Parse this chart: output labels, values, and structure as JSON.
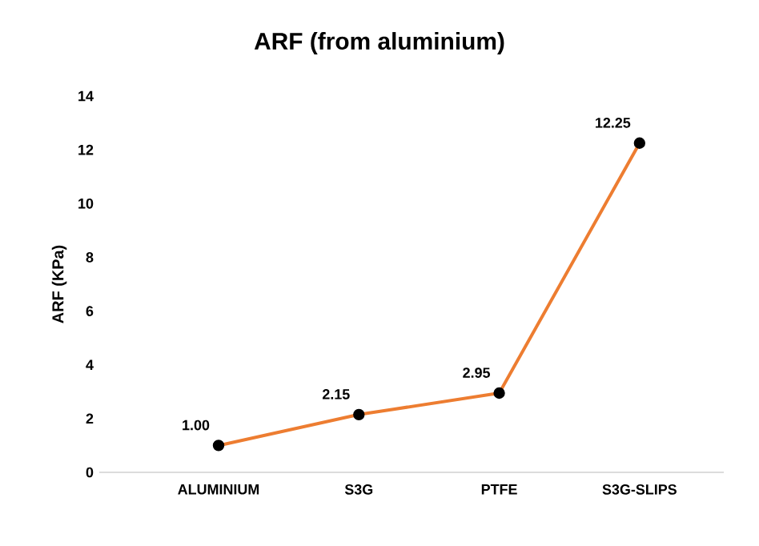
{
  "chart_data": {
    "type": "line",
    "title": "ARF (from aluminium)",
    "ylabel": "ARF (KPa)",
    "categories": [
      "ALUMINIUM",
      "S3G",
      "PTFE",
      "S3G-SLIPS"
    ],
    "series": [
      {
        "color": "#ed7d31",
        "values": [
          1.0,
          2.15,
          2.95,
          12.25
        ],
        "value_labels": [
          "1.00",
          "2.15",
          "2.95",
          "12.25"
        ]
      }
    ],
    "ylim": [
      0,
      14
    ],
    "yticks": [
      0,
      2,
      4,
      6,
      8,
      10,
      12,
      14
    ],
    "grid": false,
    "marker": "circle",
    "line_style": "solid"
  }
}
